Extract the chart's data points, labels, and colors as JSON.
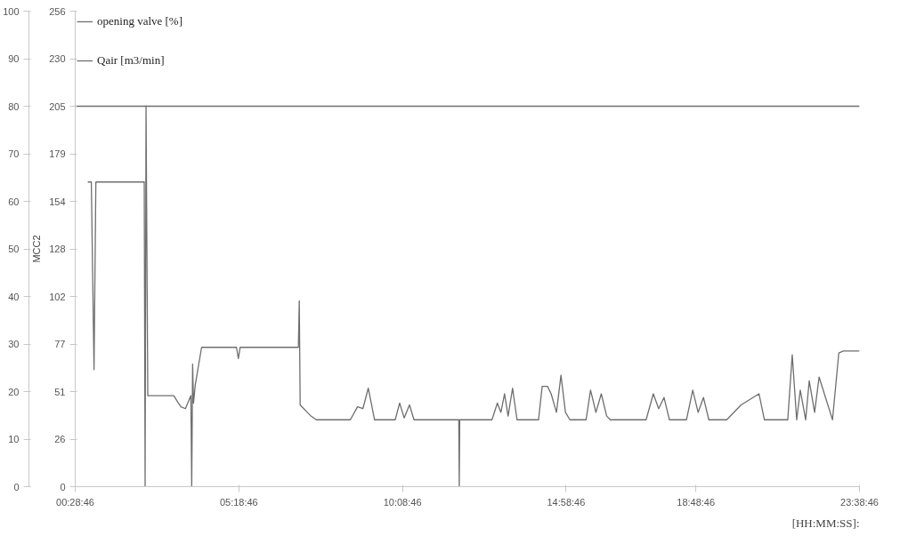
{
  "chart_data": {
    "type": "line",
    "y2label": "MCC2",
    "xlabel": "[HH:MM:SS]:",
    "xlim": [
      0.4794,
      23.6461
    ],
    "xticks": [
      {
        "value": 0.4794,
        "label": "00:28:46"
      },
      {
        "value": 5.3128,
        "label": "05:18:46"
      },
      {
        "value": 10.1461,
        "label": "10:08:46"
      },
      {
        "value": 14.9794,
        "label": "14:58:46"
      },
      {
        "value": 18.8128,
        "label": "18:48:46"
      },
      {
        "value": 23.6461,
        "label": "23:38:46"
      }
    ],
    "ylim": [
      0,
      100
    ],
    "yticks": [
      0,
      10,
      20,
      30,
      40,
      50,
      60,
      70,
      80,
      90,
      100
    ],
    "y2lim": [
      0,
      256
    ],
    "y2ticks": [
      0,
      {
        "value": 25.6,
        "label": "26"
      },
      {
        "value": 51.2,
        "label": "51"
      },
      {
        "value": 76.8,
        "label": "77"
      },
      {
        "value": 102.4,
        "label": "102"
      },
      128,
      {
        "value": 153.6,
        "label": "154"
      },
      {
        "value": 179.2,
        "label": "179"
      },
      {
        "value": 204.8,
        "label": "205"
      },
      {
        "value": 230.4,
        "label": "230"
      },
      256
    ],
    "grid": false,
    "legend": "top left",
    "series": [
      {
        "name": "opening valve [%]",
        "color": "#6e6e6e",
        "axis": "y",
        "x": [
          0.4794,
          23.6461
        ],
        "values": [
          80,
          80
        ]
      },
      {
        "name": "Qair [m3/min]",
        "color": "#6e6e6e",
        "axis": "y2",
        "x": [
          0.85,
          0.955,
          1.035,
          1.089,
          2.518,
          2.544,
          2.571,
          2.623,
          2.783,
          3.391,
          3.524,
          3.603,
          3.735,
          3.895,
          3.921,
          3.947,
          3.974,
          4.027,
          4.212,
          4.371,
          5.244,
          5.298,
          5.351,
          7.071,
          7.098,
          7.124,
          7.231,
          7.336,
          7.442,
          7.601,
          8.607,
          8.819,
          8.977,
          9.136,
          9.322,
          9.931,
          10.063,
          10.196,
          10.354,
          10.486,
          11.81,
          11.823,
          11.837,
          12.79,
          12.949,
          13.054,
          13.161,
          13.266,
          13.398,
          13.531,
          13.637,
          14.166,
          14.273,
          14.431,
          14.537,
          14.695,
          14.828,
          14.96,
          15.092,
          15.57,
          15.702,
          15.86,
          16.019,
          16.178,
          16.284,
          17.343,
          17.555,
          17.714,
          17.872,
          18.031,
          18.535,
          18.72,
          18.879,
          19.037,
          19.196,
          19.725,
          20.149,
          20.414,
          20.678,
          20.838,
          21.527,
          21.659,
          21.791,
          21.897,
          22.056,
          22.161,
          22.32,
          22.453,
          22.849,
          23.035,
          23.168,
          23.6461
        ],
        "values": [
          164,
          164,
          63,
          164,
          164,
          0,
          205,
          49,
          49,
          49,
          45,
          43,
          42,
          49,
          0,
          66,
          45,
          55,
          75,
          75,
          75,
          69,
          75,
          75,
          100,
          44,
          42,
          40,
          38,
          36,
          36,
          43,
          42,
          53,
          36,
          36,
          45,
          37,
          44,
          36,
          36,
          0,
          36,
          36,
          45,
          40,
          50,
          38,
          53,
          36,
          36,
          36,
          54,
          54,
          50,
          40,
          60,
          40,
          36,
          36,
          52,
          40,
          50,
          38,
          36,
          36,
          50,
          42,
          48,
          36,
          36,
          52,
          40,
          48,
          36,
          36,
          44,
          47,
          50,
          36,
          36,
          71,
          36,
          52,
          36,
          57,
          40,
          59,
          36,
          72,
          73,
          73
        ]
      }
    ]
  }
}
